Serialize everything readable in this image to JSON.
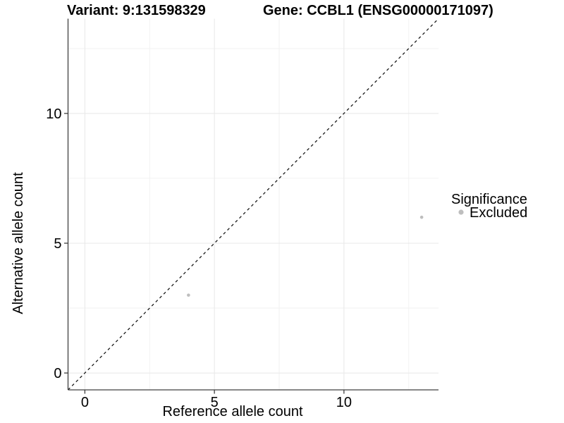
{
  "title": {
    "variant": "Variant: 9:131598329",
    "gene": "Gene: CCBL1 (ENSG00000171097)"
  },
  "chart_data": {
    "type": "scatter",
    "xlabel": "Reference allele count",
    "ylabel": "Alternative allele count",
    "xlim": [
      -0.65,
      13.65
    ],
    "ylim": [
      -0.65,
      13.65
    ],
    "x_major_ticks": [
      0,
      5,
      10
    ],
    "y_major_ticks": [
      0,
      5,
      10
    ],
    "x_minor_gridlines": [
      2.5,
      7.5,
      12.5
    ],
    "y_minor_gridlines": [
      2.5,
      7.5,
      12.5
    ],
    "grid": true,
    "identity_line": {
      "type": "abline",
      "slope": 1,
      "intercept": 0,
      "style": "dashed",
      "color": "#000000"
    },
    "series": [
      {
        "name": "Excluded",
        "color": "#bebebe",
        "points": [
          {
            "x": 4,
            "y": 3
          },
          {
            "x": 13,
            "y": 6
          }
        ]
      }
    ],
    "legend": {
      "title": "Significance",
      "position": "right",
      "entries": [
        {
          "label": "Excluded",
          "color": "#bebebe"
        }
      ]
    }
  },
  "colors": {
    "background": "#ffffff",
    "axis_line": "#404040",
    "grid_major": "#e8e8e8",
    "grid_minor": "#f2f2f2",
    "text": "#000000",
    "point": "#bebebe",
    "identity_line": "#1a1a1a"
  }
}
